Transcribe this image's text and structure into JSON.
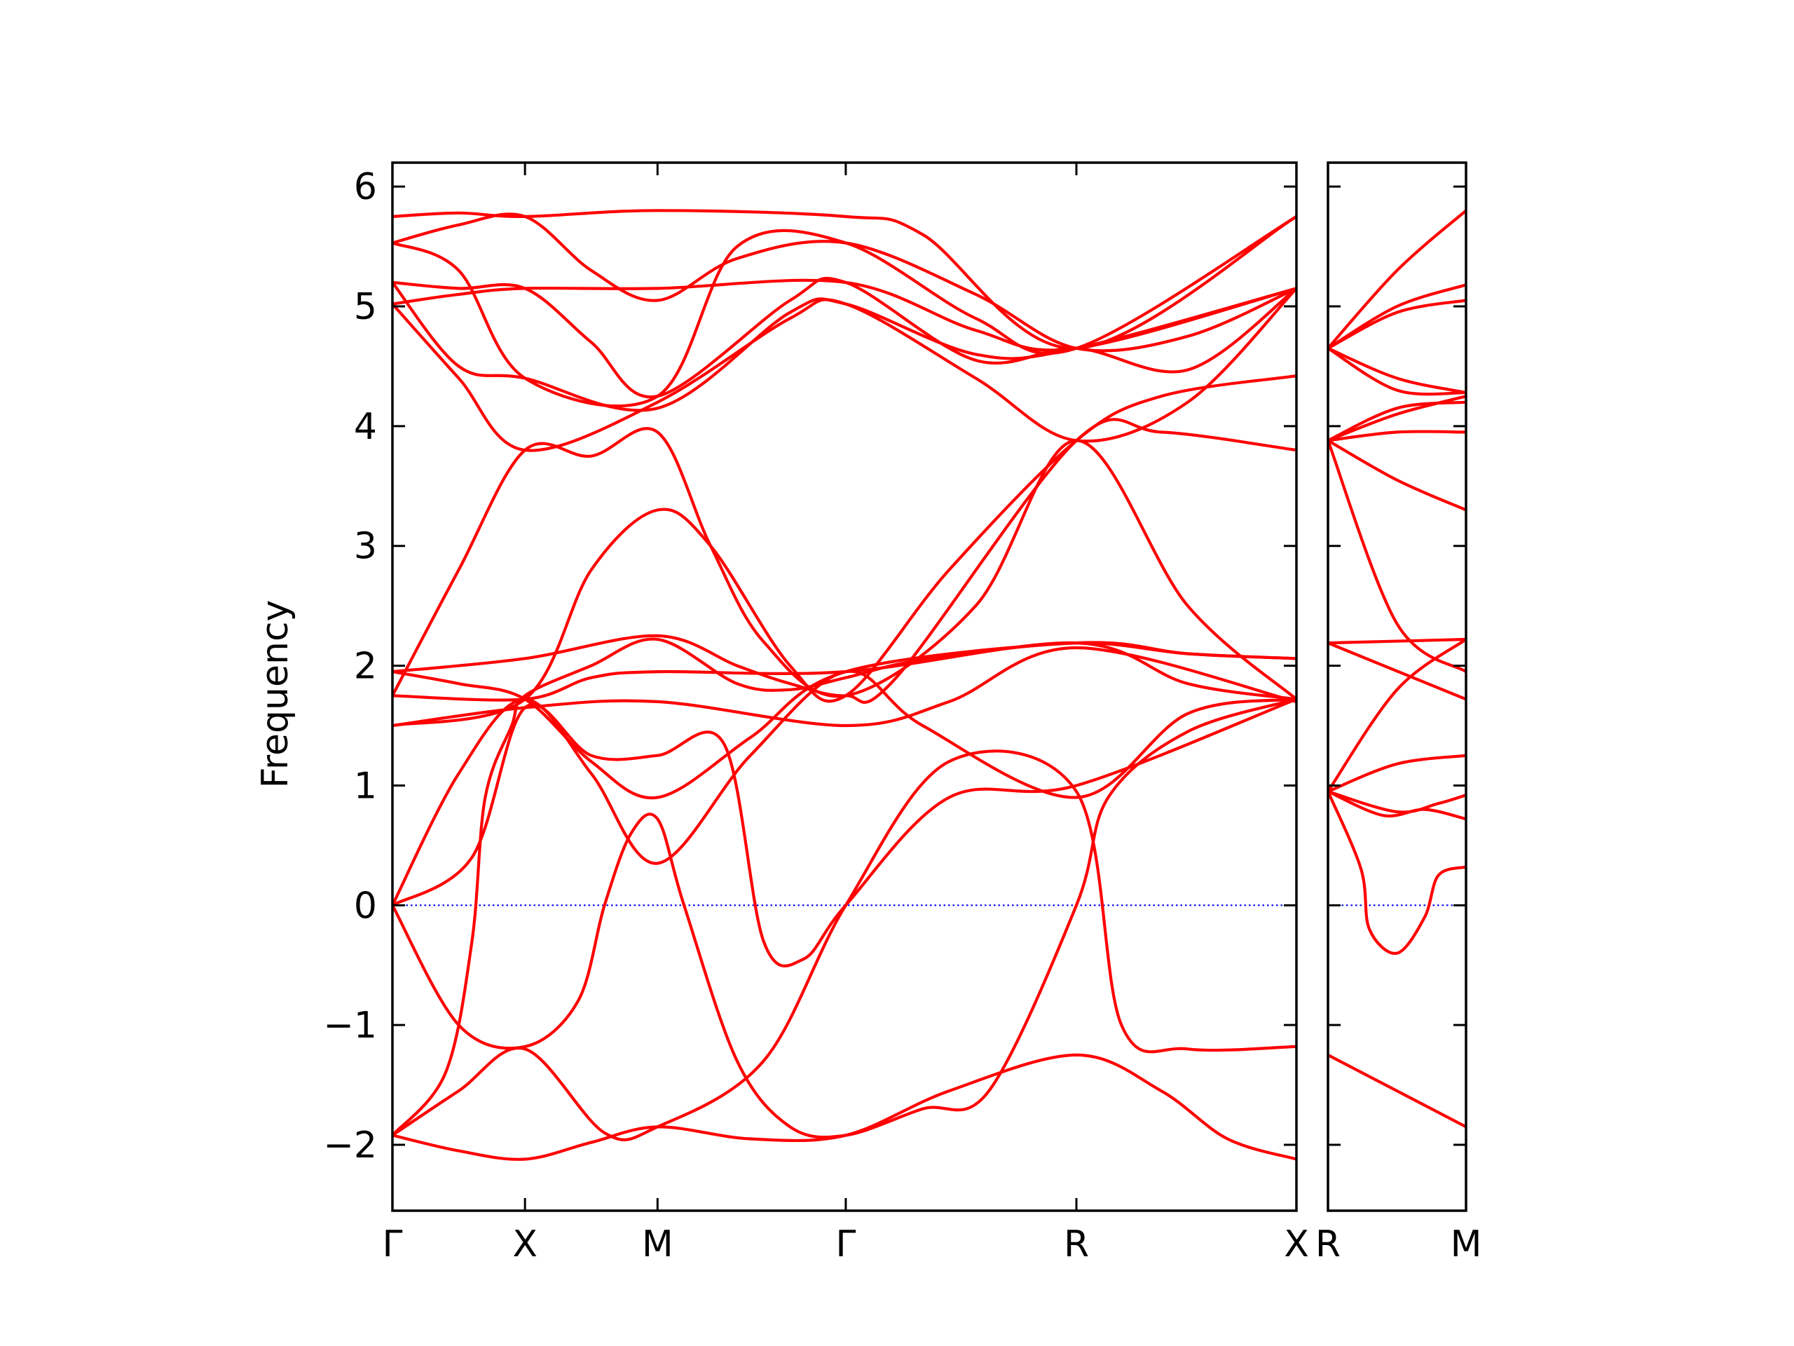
{
  "colors": {
    "band": "#ff0000",
    "zero_line": "#0000ff",
    "axes": "#000000",
    "background": "#ffffff"
  },
  "chart_data": {
    "type": "line",
    "title": "",
    "xlabel": "",
    "ylabel": "Frequency",
    "ylim": [
      -2.55,
      6.2
    ],
    "yticks": [
      -2,
      -1,
      0,
      1,
      2,
      3,
      4,
      5,
      6
    ],
    "ytick_labels": [
      "−2",
      "−1",
      "0",
      "1",
      "2",
      "3",
      "4",
      "5",
      "6"
    ],
    "zero_line": {
      "y": 0,
      "style": "dotted"
    },
    "grid": false,
    "legend": "none",
    "panels": [
      {
        "x_range": [
          0,
          3.41
        ],
        "xticks": [
          0,
          0.5,
          1.0,
          1.71,
          2.58,
          3.41
        ],
        "xtick_labels": [
          "Γ",
          "X",
          "M",
          "Γ",
          "R",
          "X"
        ],
        "bands": [
          [
            [
              0,
              -1.92
            ],
            [
              0.25,
              -2.05
            ],
            [
              0.5,
              -2.12
            ],
            [
              0.75,
              -1.98
            ],
            [
              1.0,
              -1.85
            ],
            [
              1.35,
              -1.95
            ],
            [
              1.71,
              -1.92
            ],
            [
              2.1,
              -1.55
            ],
            [
              2.58,
              -1.25
            ],
            [
              2.9,
              -1.55
            ],
            [
              3.15,
              -1.95
            ],
            [
              3.41,
              -2.12
            ]
          ],
          [
            [
              0,
              -1.92
            ],
            [
              0.2,
              -1.4
            ],
            [
              0.3,
              -0.3
            ],
            [
              0.35,
              0.9
            ],
            [
              0.45,
              1.5
            ],
            [
              0.5,
              1.75
            ],
            [
              0.75,
              2.0
            ],
            [
              1.0,
              2.22
            ],
            [
              1.3,
              1.85
            ],
            [
              1.5,
              1.8
            ],
            [
              1.71,
              1.9
            ],
            [
              2.0,
              2.05
            ],
            [
              2.58,
              2.19
            ],
            [
              3.0,
              2.1
            ],
            [
              3.41,
              2.06
            ]
          ],
          [
            [
              0,
              -1.92
            ],
            [
              0.25,
              -1.55
            ],
            [
              0.5,
              -1.2
            ],
            [
              0.8,
              -1.9
            ],
            [
              1.0,
              -1.85
            ],
            [
              1.4,
              -1.3
            ],
            [
              1.71,
              0.0
            ],
            [
              2.1,
              1.2
            ],
            [
              2.58,
              0.95
            ],
            [
              2.75,
              -1.0
            ],
            [
              3.0,
              -1.2
            ],
            [
              3.41,
              -1.18
            ]
          ],
          [
            [
              0,
              0
            ],
            [
              0.25,
              -1.0
            ],
            [
              0.5,
              -1.18
            ],
            [
              0.7,
              -0.8
            ],
            [
              0.8,
              0.0
            ],
            [
              0.9,
              0.6
            ],
            [
              1.0,
              0.72
            ],
            [
              1.1,
              0.0
            ],
            [
              1.3,
              -1.3
            ],
            [
              1.5,
              -1.85
            ],
            [
              1.71,
              -1.92
            ],
            [
              2.0,
              -1.7
            ],
            [
              2.25,
              -1.55
            ],
            [
              2.58,
              0.0
            ],
            [
              2.7,
              0.9
            ],
            [
              3.0,
              1.45
            ],
            [
              3.41,
              1.72
            ]
          ],
          [
            [
              0,
              0
            ],
            [
              0.25,
              1.1
            ],
            [
              0.5,
              1.72
            ],
            [
              0.75,
              1.1
            ],
            [
              1.0,
              0.35
            ],
            [
              1.35,
              1.25
            ],
            [
              1.71,
              1.95
            ],
            [
              2.0,
              1.5
            ],
            [
              2.58,
              0.9
            ],
            [
              3.0,
              1.6
            ],
            [
              3.41,
              1.72
            ]
          ],
          [
            [
              0,
              0
            ],
            [
              0.3,
              0.4
            ],
            [
              0.5,
              1.65
            ],
            [
              0.75,
              1.25
            ],
            [
              1.0,
              1.25
            ],
            [
              1.25,
              1.35
            ],
            [
              1.4,
              -0.3
            ],
            [
              1.55,
              -0.45
            ],
            [
              1.71,
              0.0
            ],
            [
              2.1,
              0.9
            ],
            [
              2.58,
              1.0
            ],
            [
              3.41,
              1.72
            ]
          ],
          [
            [
              0,
              1.5
            ],
            [
              0.5,
              1.65
            ],
            [
              1.0,
              1.7
            ],
            [
              1.71,
              1.5
            ],
            [
              2.1,
              1.7
            ],
            [
              2.58,
              2.15
            ],
            [
              3.41,
              1.7
            ]
          ],
          [
            [
              0,
              1.75
            ],
            [
              0.5,
              1.72
            ],
            [
              0.75,
              1.9
            ],
            [
              1.0,
              1.95
            ],
            [
              1.71,
              1.95
            ],
            [
              2.58,
              2.19
            ],
            [
              3.0,
              1.85
            ],
            [
              3.41,
              1.72
            ]
          ],
          [
            [
              0,
              1.95
            ],
            [
              0.25,
              1.85
            ],
            [
              0.5,
              1.72
            ],
            [
              0.75,
              1.2
            ],
            [
              1.0,
              0.9
            ],
            [
              1.35,
              1.4
            ],
            [
              1.71,
              1.95
            ],
            [
              2.58,
              2.19
            ],
            [
              3.0,
              2.1
            ],
            [
              3.41,
              2.06
            ]
          ],
          [
            [
              0,
              1.95
            ],
            [
              0.5,
              2.06
            ],
            [
              1.0,
              2.25
            ],
            [
              1.3,
              2.0
            ],
            [
              1.5,
              1.85
            ],
            [
              1.71,
              1.75
            ],
            [
              1.9,
              1.9
            ],
            [
              2.58,
              3.88
            ],
            [
              2.9,
              3.95
            ],
            [
              3.41,
              3.8
            ]
          ],
          [
            [
              0,
              1.75
            ],
            [
              0.25,
              2.8
            ],
            [
              0.5,
              3.8
            ],
            [
              0.75,
              3.75
            ],
            [
              1.0,
              3.95
            ],
            [
              1.2,
              3.0
            ],
            [
              1.4,
              2.2
            ],
            [
              1.71,
              1.75
            ],
            [
              2.2,
              2.5
            ],
            [
              2.58,
              3.88
            ],
            [
              3.0,
              2.5
            ],
            [
              3.41,
              1.72
            ]
          ],
          [
            [
              0,
              1.5
            ],
            [
              0.5,
              1.72
            ],
            [
              0.75,
              2.8
            ],
            [
              1.0,
              3.3
            ],
            [
              1.2,
              3.0
            ],
            [
              1.5,
              2.0
            ],
            [
              1.71,
              1.75
            ],
            [
              2.1,
              2.8
            ],
            [
              2.58,
              3.88
            ],
            [
              2.9,
              4.25
            ],
            [
              3.41,
              4.42
            ]
          ],
          [
            [
              0,
              5.02
            ],
            [
              0.25,
              4.4
            ],
            [
              0.5,
              3.8
            ],
            [
              1.0,
              4.2
            ],
            [
              1.5,
              4.9
            ],
            [
              1.71,
              5.02
            ],
            [
              2.2,
              4.4
            ],
            [
              2.58,
              3.88
            ],
            [
              3.0,
              4.2
            ],
            [
              3.41,
              5.15
            ]
          ],
          [
            [
              0,
              5.2
            ],
            [
              0.25,
              4.5
            ],
            [
              0.5,
              4.4
            ],
            [
              1.0,
              4.15
            ],
            [
              1.5,
              4.95
            ],
            [
              1.71,
              5.02
            ],
            [
              2.2,
              4.6
            ],
            [
              2.58,
              4.65
            ],
            [
              3.41,
              5.15
            ]
          ],
          [
            [
              0,
              5.2
            ],
            [
              0.25,
              5.15
            ],
            [
              0.5,
              5.15
            ],
            [
              0.75,
              4.7
            ],
            [
              1.0,
              4.25
            ],
            [
              1.5,
              5.05
            ],
            [
              1.71,
              5.2
            ],
            [
              2.2,
              4.55
            ],
            [
              2.58,
              4.65
            ],
            [
              3.0,
              4.47
            ],
            [
              3.41,
              5.15
            ]
          ],
          [
            [
              0,
              5.02
            ],
            [
              0.25,
              5.1
            ],
            [
              0.5,
              5.15
            ],
            [
              1.0,
              5.15
            ],
            [
              1.71,
              5.2
            ],
            [
              2.2,
              4.8
            ],
            [
              2.58,
              4.65
            ],
            [
              3.41,
              5.15
            ]
          ],
          [
            [
              0,
              5.53
            ],
            [
              0.25,
              5.3
            ],
            [
              0.5,
              4.4
            ],
            [
              1.0,
              4.25
            ],
            [
              1.3,
              5.5
            ],
            [
              1.71,
              5.53
            ],
            [
              2.2,
              4.9
            ],
            [
              2.58,
              4.65
            ],
            [
              3.41,
              5.75
            ]
          ],
          [
            [
              0,
              5.75
            ],
            [
              0.25,
              5.78
            ],
            [
              0.5,
              5.75
            ],
            [
              1.0,
              5.8
            ],
            [
              1.71,
              5.75
            ],
            [
              2.0,
              5.6
            ],
            [
              2.58,
              4.65
            ],
            [
              3.41,
              5.75
            ]
          ],
          [
            [
              0,
              5.53
            ],
            [
              0.25,
              5.68
            ],
            [
              0.5,
              5.75
            ],
            [
              0.75,
              5.3
            ],
            [
              1.0,
              5.05
            ],
            [
              1.3,
              5.4
            ],
            [
              1.71,
              5.53
            ],
            [
              2.2,
              5.1
            ],
            [
              2.58,
              4.65
            ],
            [
              3.0,
              4.75
            ],
            [
              3.41,
              5.15
            ]
          ]
        ]
      },
      {
        "x_range": [
          0,
          0.5
        ],
        "xticks": [
          0,
          0.5
        ],
        "xtick_labels": [
          "R",
          "M"
        ],
        "bands": [
          [
            [
              0,
              -1.25
            ],
            [
              0.25,
              -1.55
            ],
            [
              0.5,
              -1.85
            ]
          ],
          [
            [
              0,
              0.95
            ],
            [
              0.12,
              0.3
            ],
            [
              0.15,
              -0.2
            ],
            [
              0.25,
              -0.4
            ],
            [
              0.35,
              -0.1
            ],
            [
              0.4,
              0.25
            ],
            [
              0.5,
              0.32
            ]
          ],
          [
            [
              0,
              0.95
            ],
            [
              0.2,
              0.75
            ],
            [
              0.35,
              0.8
            ],
            [
              0.5,
              0.72
            ]
          ],
          [
            [
              0,
              0.95
            ],
            [
              0.25,
              0.78
            ],
            [
              0.4,
              0.85
            ],
            [
              0.5,
              0.92
            ]
          ],
          [
            [
              0,
              0.95
            ],
            [
              0.25,
              1.18
            ],
            [
              0.5,
              1.25
            ]
          ],
          [
            [
              0,
              0.95
            ],
            [
              0.25,
              1.8
            ],
            [
              0.5,
              2.22
            ]
          ],
          [
            [
              0,
              2.19
            ],
            [
              0.5,
              2.22
            ]
          ],
          [
            [
              0,
              2.19
            ],
            [
              0.5,
              1.72
            ]
          ],
          [
            [
              0,
              3.88
            ],
            [
              0.25,
              2.35
            ],
            [
              0.5,
              1.95
            ]
          ],
          [
            [
              0,
              3.88
            ],
            [
              0.25,
              3.55
            ],
            [
              0.5,
              3.3
            ]
          ],
          [
            [
              0,
              3.88
            ],
            [
              0.25,
              3.95
            ],
            [
              0.5,
              3.95
            ]
          ],
          [
            [
              0,
              3.88
            ],
            [
              0.25,
              4.15
            ],
            [
              0.5,
              4.2
            ]
          ],
          [
            [
              0,
              3.88
            ],
            [
              0.25,
              4.1
            ],
            [
              0.5,
              4.25
            ]
          ],
          [
            [
              0,
              4.65
            ],
            [
              0.25,
              4.3
            ],
            [
              0.5,
              4.28
            ]
          ],
          [
            [
              0,
              4.65
            ],
            [
              0.25,
              4.4
            ],
            [
              0.5,
              4.28
            ]
          ],
          [
            [
              0,
              4.65
            ],
            [
              0.25,
              4.95
            ],
            [
              0.5,
              5.05
            ]
          ],
          [
            [
              0,
              4.65
            ],
            [
              0.25,
              5.0
            ],
            [
              0.5,
              5.18
            ]
          ],
          [
            [
              0,
              4.65
            ],
            [
              0.25,
              5.3
            ],
            [
              0.5,
              5.8
            ]
          ]
        ]
      }
    ]
  }
}
